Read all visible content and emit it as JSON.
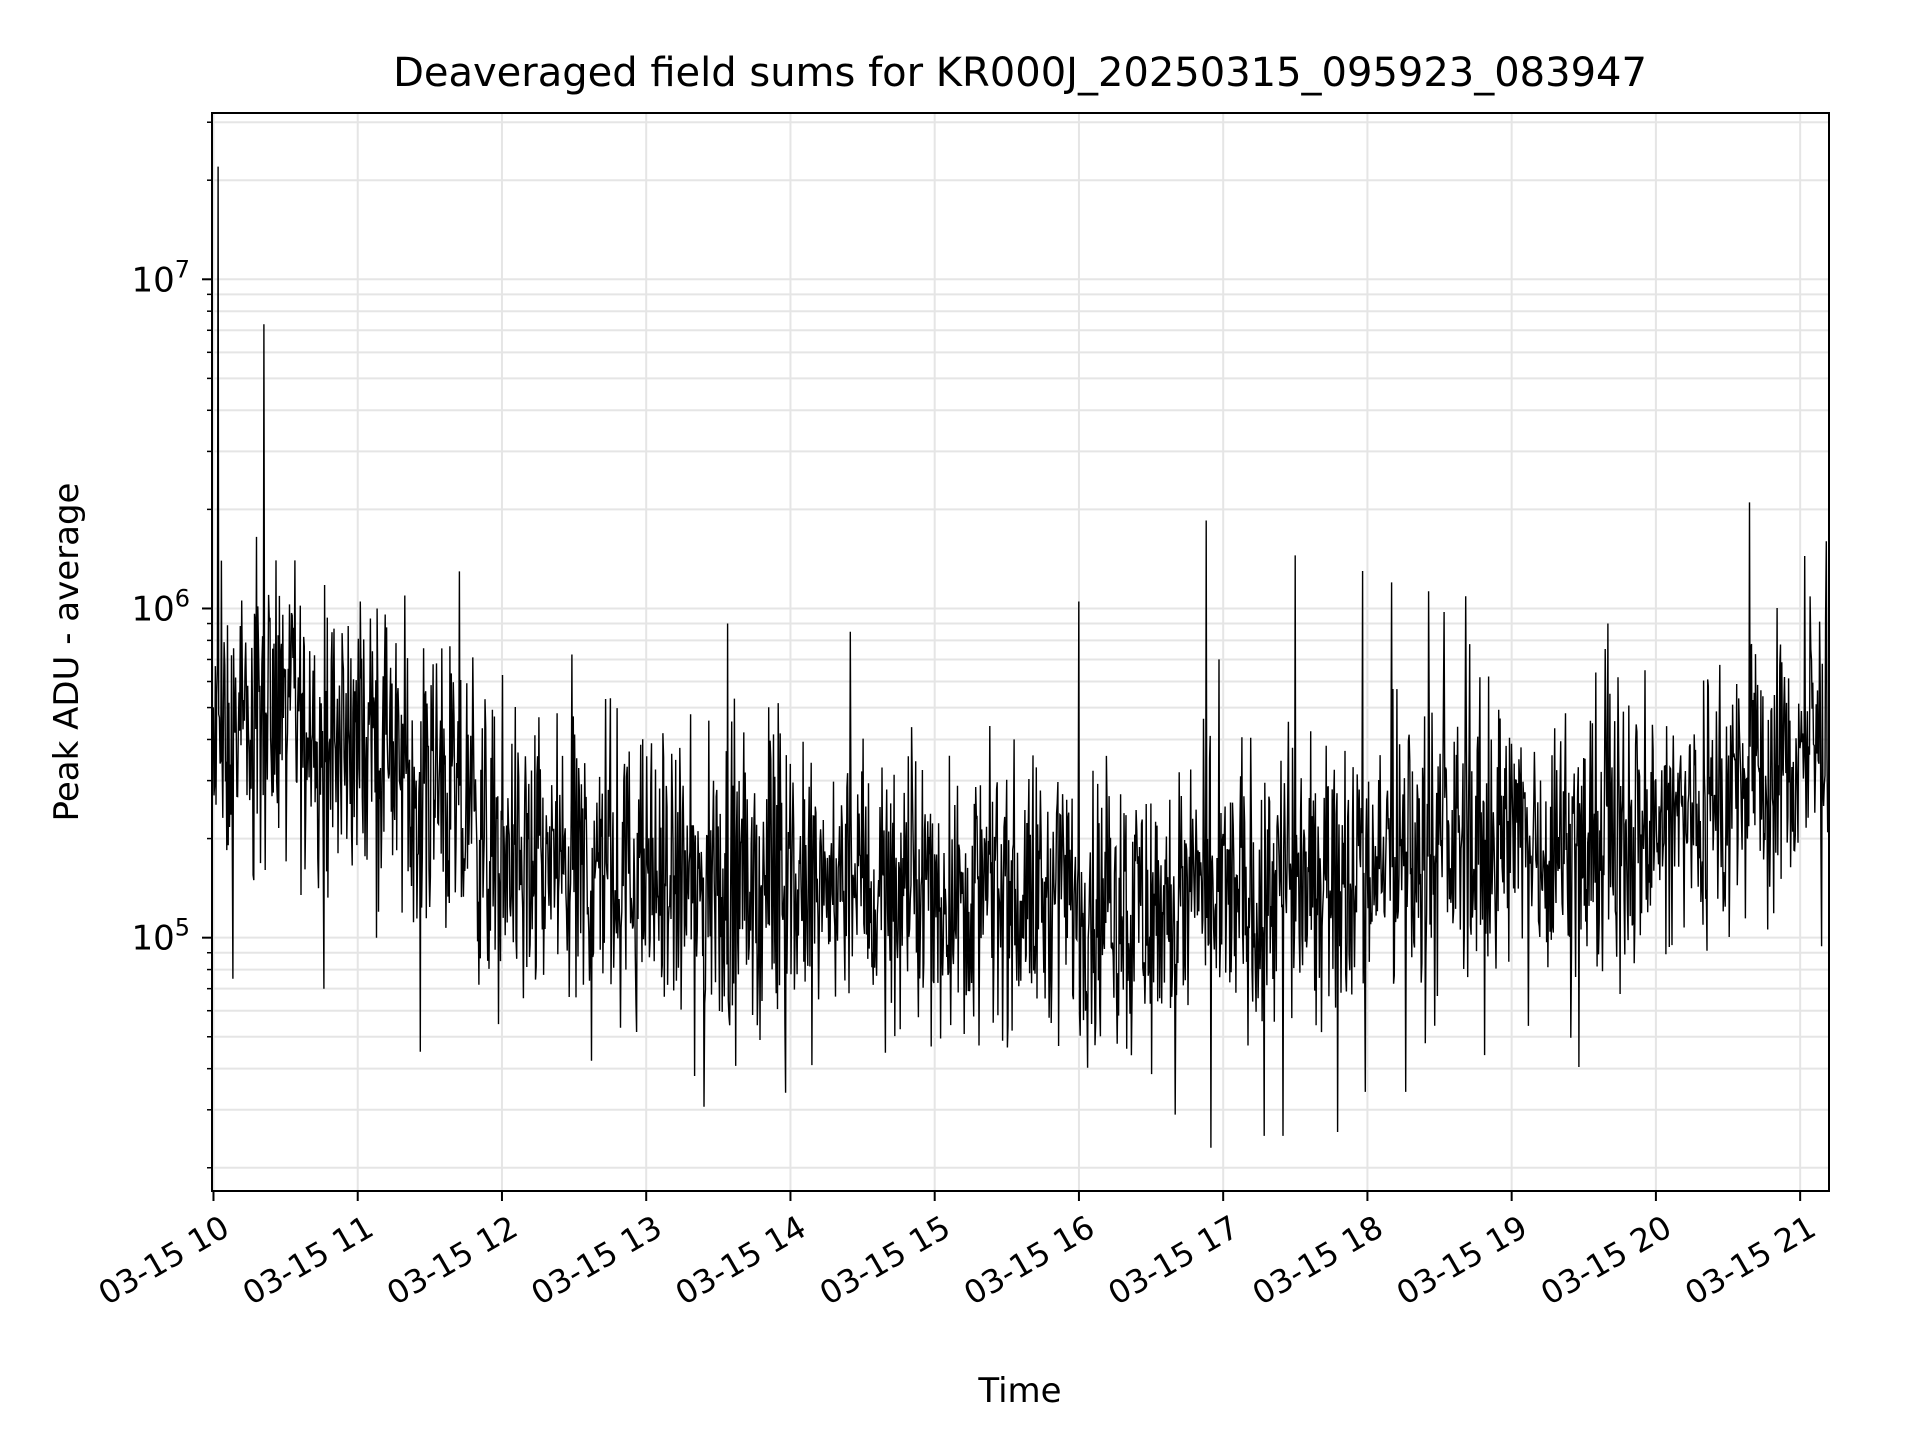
{
  "chart_data": {
    "type": "line",
    "title": "Deaveraged field sums for KR000J_20250315_095923_083947",
    "xlabel": "Time",
    "ylabel": "Peak ADU - average",
    "yscale": "log",
    "xlim": [
      "2025-03-15T09:59:23",
      "2025-03-15T21:12:00"
    ],
    "ylim": [
      17000,
      32000000
    ],
    "grid": true,
    "line_color": "#000000",
    "grid_color": "#e5e5e5",
    "x_tick_labels": [
      "03-15 10",
      "03-15 11",
      "03-15 12",
      "03-15 13",
      "03-15 14",
      "03-15 15",
      "03-15 16",
      "03-15 17",
      "03-15 18",
      "03-15 19",
      "03-15 20",
      "03-15 21"
    ],
    "y_tick_labels": [
      {
        "value": 100000,
        "base": "10",
        "exp": "5"
      },
      {
        "value": 1000000,
        "base": "10",
        "exp": "6"
      },
      {
        "value": 10000000,
        "base": "10",
        "exp": "7"
      }
    ],
    "series": [
      {
        "x": [
          "2025-03-15T10:00",
          "2025-03-15T10:10",
          "2025-03-15T10:20",
          "2025-03-15T10:30",
          "2025-03-15T10:45",
          "2025-03-15T11:00",
          "2025-03-15T11:15",
          "2025-03-15T11:30",
          "2025-03-15T11:45",
          "2025-03-15T12:00",
          "2025-03-15T12:30",
          "2025-03-15T13:00",
          "2025-03-15T13:30",
          "2025-03-15T14:00",
          "2025-03-15T14:30",
          "2025-03-15T15:00",
          "2025-03-15T15:30",
          "2025-03-15T16:00",
          "2025-03-15T16:30",
          "2025-03-15T17:00",
          "2025-03-15T17:30",
          "2025-03-15T18:00",
          "2025-03-15T18:30",
          "2025-03-15T19:00",
          "2025-03-15T19:30",
          "2025-03-15T20:00",
          "2025-03-15T20:30",
          "2025-03-15T21:00",
          "2025-03-15T21:10"
        ],
        "y": [
          350000,
          400000,
          430000,
          440000,
          420000,
          400000,
          350000,
          300000,
          220000,
          180000,
          160000,
          150000,
          140000,
          140000,
          140000,
          135000,
          135000,
          130000,
          120000,
          130000,
          150000,
          170000,
          190000,
          200000,
          190000,
          210000,
          270000,
          350000,
          420000
        ]
      }
    ],
    "spikes": [
      {
        "x": "2025-03-15T10:02",
        "y": 22000000
      },
      {
        "x": "2025-03-15T10:18",
        "y": 1650000
      },
      {
        "x": "2025-03-15T10:23",
        "y": 1100000
      },
      {
        "x": "2025-03-15T10:26",
        "y": 1400000
      },
      {
        "x": "2025-03-15T10:21",
        "y": 7300000
      },
      {
        "x": "2025-03-15T10:34",
        "y": 1400000
      },
      {
        "x": "2025-03-15T11:01",
        "y": 1050000
      },
      {
        "x": "2025-03-15T11:08",
        "y": 1000000
      },
      {
        "x": "2025-03-15T13:34",
        "y": 900000
      },
      {
        "x": "2025-03-15T14:25",
        "y": 850000
      },
      {
        "x": "2025-03-15T16:00",
        "y": 1050000
      },
      {
        "x": "2025-03-15T16:53",
        "y": 1850000
      },
      {
        "x": "2025-03-15T17:30",
        "y": 1450000
      },
      {
        "x": "2025-03-15T17:58",
        "y": 1300000
      },
      {
        "x": "2025-03-15T18:10",
        "y": 1200000
      },
      {
        "x": "2025-03-15T19:40",
        "y": 900000
      },
      {
        "x": "2025-03-15T20:39",
        "y": 2100000
      },
      {
        "x": "2025-03-15T21:11",
        "y": 1600000
      },
      {
        "x": "2025-03-15T10:08",
        "y": 75000
      },
      {
        "x": "2025-03-15T10:46",
        "y": 70000
      },
      {
        "x": "2025-03-15T11:26",
        "y": 45000
      },
      {
        "x": "2025-03-15T13:20",
        "y": 38000
      },
      {
        "x": "2025-03-15T14:09",
        "y": 41000
      },
      {
        "x": "2025-03-15T16:40",
        "y": 29000
      },
      {
        "x": "2025-03-15T16:55",
        "y": 23000
      },
      {
        "x": "2025-03-15T17:17",
        "y": 25000
      },
      {
        "x": "2025-03-15T17:25",
        "y": 25000
      },
      {
        "x": "2025-03-15T18:16",
        "y": 34000
      },
      {
        "x": "2025-03-15T17:59",
        "y": 34000
      }
    ]
  }
}
